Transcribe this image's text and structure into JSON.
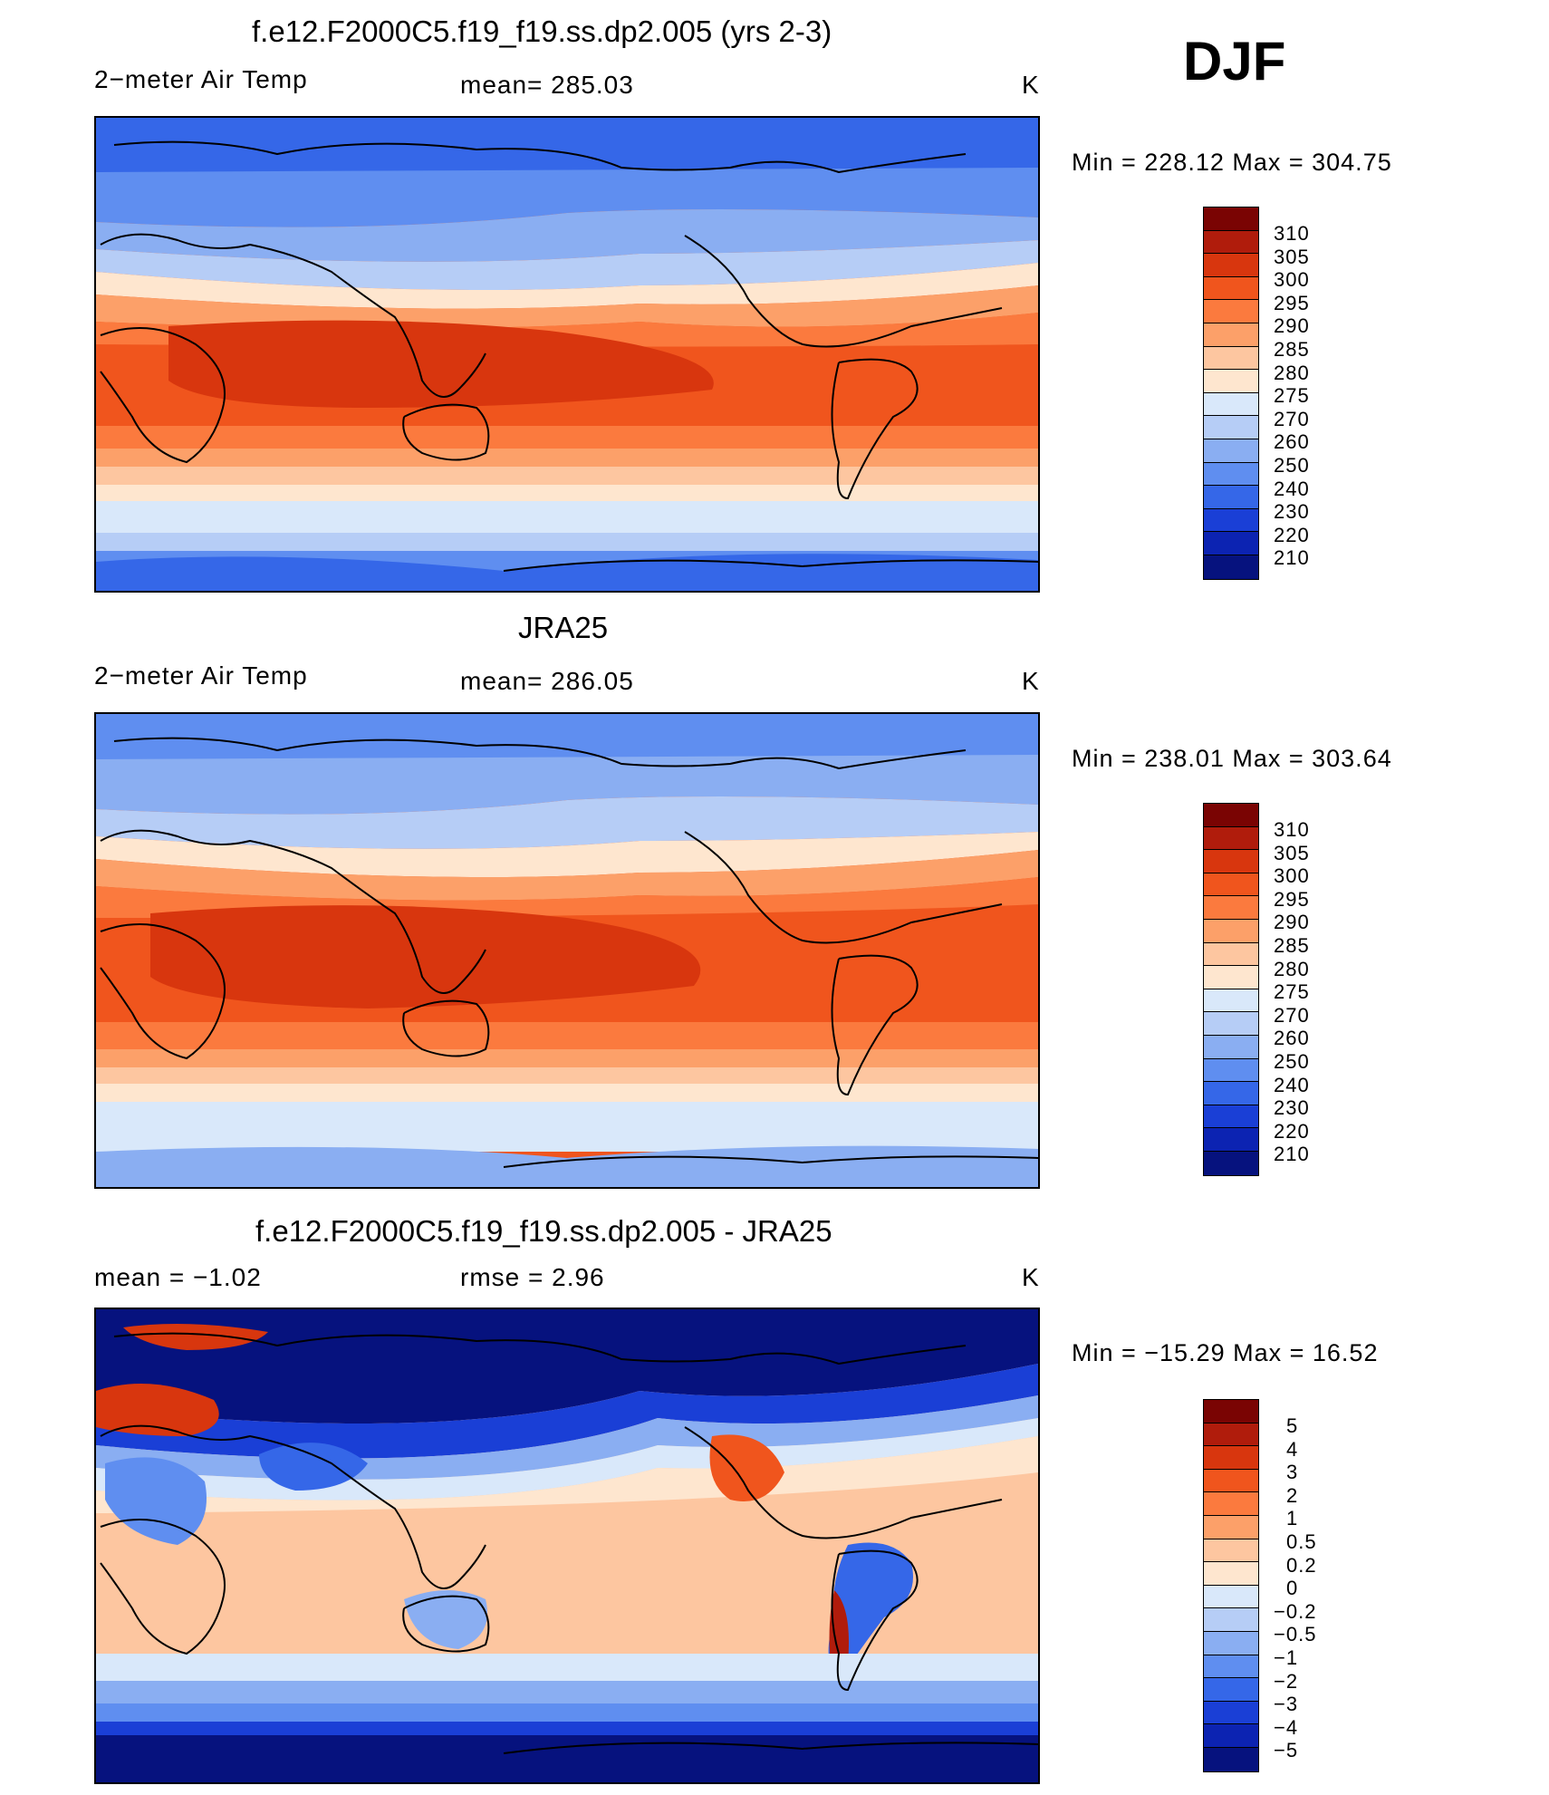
{
  "season": "DJF",
  "units_label": "K",
  "panels": [
    {
      "title": "f.e12.F2000C5.f19_f19.ss.dp2.005 (yrs 2-3)",
      "left_label": "2−meter Air Temp",
      "center_label": "mean=  285.03",
      "right_label": "K",
      "minmax": "Min  =  228.12  Max  =  304.75"
    },
    {
      "title": "JRA25",
      "left_label": "2−meter Air Temp",
      "center_label": "mean=  286.05",
      "right_label": "K",
      "minmax": "Min  =  238.01  Max  =  303.64"
    },
    {
      "title": "f.e12.F2000C5.f19_f19.ss.dp2.005 - JRA25",
      "left_label": "mean  =     −1.02",
      "center_label": "rmse  =      2.96",
      "right_label": "K",
      "minmax": "Min  =  −15.29  Max  =    16.52"
    }
  ],
  "colorbar_temp": {
    "labels": [
      "310",
      "305",
      "300",
      "295",
      "290",
      "285",
      "280",
      "275",
      "270",
      "260",
      "250",
      "240",
      "230",
      "220",
      "210"
    ],
    "colors": [
      "#7a0403",
      "#b01c0c",
      "#d8360e",
      "#f0551d",
      "#fb7a3e",
      "#fca069",
      "#fdc6a0",
      "#fee6cf",
      "#d9e8fa",
      "#b6cdf6",
      "#8aaef2",
      "#5f8ef0",
      "#3567e8",
      "#1a3fd6",
      "#0c23b2",
      "#06127e"
    ]
  },
  "colorbar_diff": {
    "labels": [
      "5",
      "4",
      "3",
      "2",
      "1",
      "0.5",
      "0.2",
      "0",
      "−0.2",
      "−0.5",
      "−1",
      "−2",
      "−3",
      "−4",
      "−5"
    ],
    "colors": [
      "#7a0403",
      "#b01c0c",
      "#d8360e",
      "#f0551d",
      "#fb7a3e",
      "#fca069",
      "#fdc6a0",
      "#fee6cf",
      "#d9e8fa",
      "#b6cdf6",
      "#8aaef2",
      "#5f8ef0",
      "#3567e8",
      "#1a3fd6",
      "#0c23b2",
      "#06127e"
    ]
  }
}
